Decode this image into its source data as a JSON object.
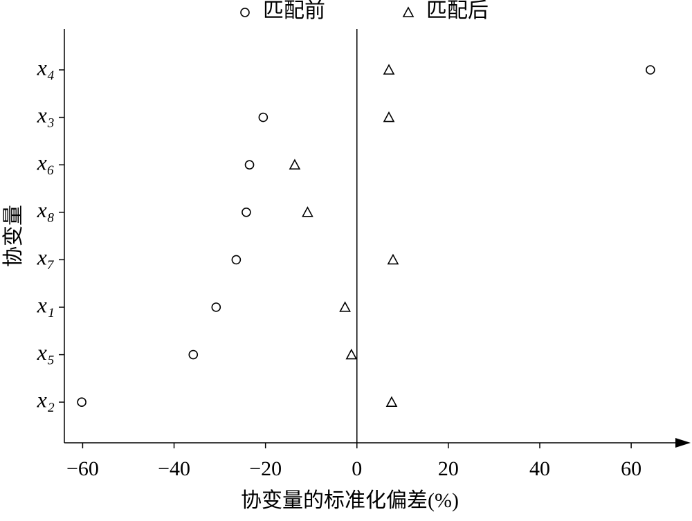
{
  "chart_data": {
    "type": "scatter",
    "x_label": "协变量的标准化偏差(%)",
    "y_label": "协变量",
    "categories": [
      "x₄",
      "x₃",
      "x₆",
      "x₈",
      "x₇",
      "x₁",
      "x₅",
      "x₂"
    ],
    "series": [
      {
        "name": "匹配前",
        "color": "#000000",
        "marker": "circle",
        "values": [
          64.2,
          -20.5,
          -23.5,
          -24.2,
          -26.4,
          -30.8,
          -35.8,
          -60.2
        ]
      },
      {
        "name": "匹配后",
        "color": "#000000",
        "marker": "triangle",
        "values": [
          7.0,
          7.0,
          -13.6,
          -10.8,
          7.9,
          -2.6,
          -1.2,
          7.6
        ]
      }
    ],
    "xlim": [
      -64,
      73
    ],
    "xticks": [
      {
        "value": -60,
        "label": "−60"
      },
      {
        "value": -40,
        "label": "−40"
      },
      {
        "value": -20,
        "label": "−20"
      },
      0,
      20,
      40,
      60
    ],
    "legend": "top",
    "zero_line": true
  }
}
